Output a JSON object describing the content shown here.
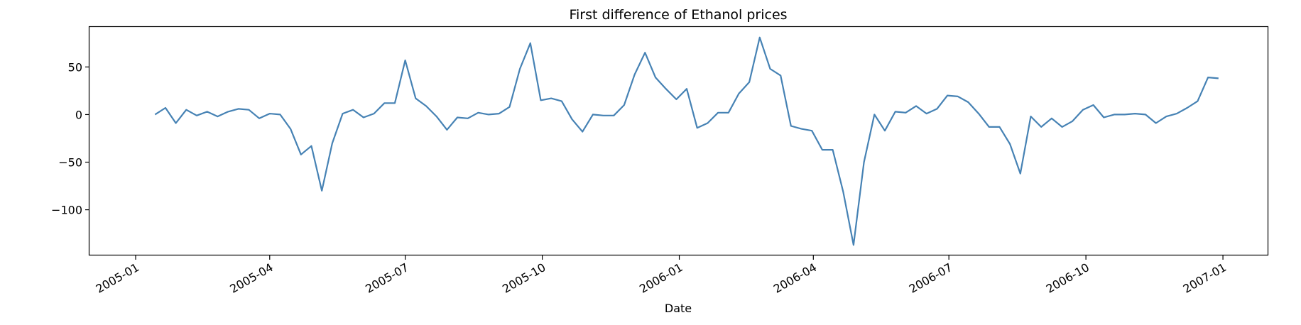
{
  "chart_data": {
    "type": "line",
    "title": "First difference of Ethanol prices",
    "xlabel": "Date",
    "ylabel": "",
    "x_tick_labels": [
      "2005-01",
      "2005-04",
      "2005-07",
      "2005-10",
      "2006-01",
      "2006-04",
      "2006-07",
      "2006-10",
      "2007-01"
    ],
    "y_tick_labels": [
      "50",
      "0",
      "−50",
      "−100"
    ],
    "y_ticks": [
      50,
      0,
      -50,
      -100
    ],
    "ylim": [
      -148,
      92
    ],
    "xlim": [
      "2004-12-01",
      "2007-01-31"
    ],
    "grid": false,
    "line_color": "#4682b4",
    "series": [
      {
        "x": [
          "2005-01-14",
          "2005-01-21",
          "2005-01-28",
          "2005-02-04",
          "2005-02-11",
          "2005-02-18",
          "2005-02-25",
          "2005-03-04",
          "2005-03-11",
          "2005-03-18",
          "2005-03-25",
          "2005-04-01",
          "2005-04-08",
          "2005-04-15",
          "2005-04-22",
          "2005-04-29",
          "2005-05-06",
          "2005-05-13",
          "2005-05-20",
          "2005-05-27",
          "2005-06-03",
          "2005-06-10",
          "2005-06-17",
          "2005-06-24",
          "2005-07-01",
          "2005-07-08",
          "2005-07-15",
          "2005-07-22",
          "2005-07-29",
          "2005-08-05",
          "2005-08-12",
          "2005-08-19",
          "2005-08-26",
          "2005-09-02",
          "2005-09-09",
          "2005-09-16",
          "2005-09-23",
          "2005-09-30",
          "2005-10-07",
          "2005-10-14",
          "2005-10-21",
          "2005-10-28",
          "2005-11-04",
          "2005-11-11",
          "2005-11-18",
          "2005-11-25",
          "2005-12-02",
          "2005-12-09",
          "2005-12-16",
          "2005-12-23",
          "2005-12-30",
          "2006-01-06",
          "2006-01-13",
          "2006-01-20",
          "2006-01-27",
          "2006-02-03",
          "2006-02-10",
          "2006-02-17",
          "2006-02-24",
          "2006-03-03",
          "2006-03-10",
          "2006-03-17",
          "2006-03-24",
          "2006-03-31",
          "2006-04-07",
          "2006-04-14",
          "2006-04-21",
          "2006-04-28",
          "2006-05-05",
          "2006-05-12",
          "2006-05-19",
          "2006-05-26",
          "2006-06-02",
          "2006-06-09",
          "2006-06-16",
          "2006-06-23",
          "2006-06-30",
          "2006-07-07",
          "2006-07-14",
          "2006-07-21",
          "2006-07-28",
          "2006-08-04",
          "2006-08-11",
          "2006-08-18",
          "2006-08-25",
          "2006-09-01",
          "2006-09-08",
          "2006-09-15",
          "2006-09-22",
          "2006-09-29",
          "2006-10-06",
          "2006-10-13",
          "2006-10-20",
          "2006-10-27",
          "2006-11-03",
          "2006-11-10",
          "2006-11-17",
          "2006-11-24",
          "2006-12-01",
          "2006-12-08",
          "2006-12-15",
          "2006-12-22",
          "2006-12-29"
        ],
        "y": [
          0,
          7,
          -9,
          5,
          -1,
          3,
          -2,
          3,
          6,
          5,
          -4,
          1,
          0,
          -15,
          -42,
          -33,
          -80,
          -30,
          1,
          5,
          -3,
          1,
          12,
          12,
          57,
          17,
          9,
          -2,
          -16,
          -3,
          -4,
          2,
          0,
          1,
          8,
          48,
          75,
          15,
          17,
          14,
          -5,
          -18,
          0,
          -1,
          -1,
          10,
          42,
          65,
          39,
          27,
          16,
          27,
          -14,
          -9,
          2,
          2,
          22,
          34,
          81,
          48,
          41,
          -12,
          -15,
          -17,
          -37,
          -37,
          -81,
          -137,
          -50,
          0,
          -17,
          3,
          2,
          9,
          1,
          6,
          20,
          19,
          13,
          1,
          -13,
          -13,
          -31,
          -62,
          -2,
          -13,
          -4,
          -13,
          -7,
          5,
          10,
          -3,
          0,
          0,
          1,
          0,
          -9,
          -2,
          1,
          7,
          14,
          39,
          38
        ]
      }
    ]
  }
}
